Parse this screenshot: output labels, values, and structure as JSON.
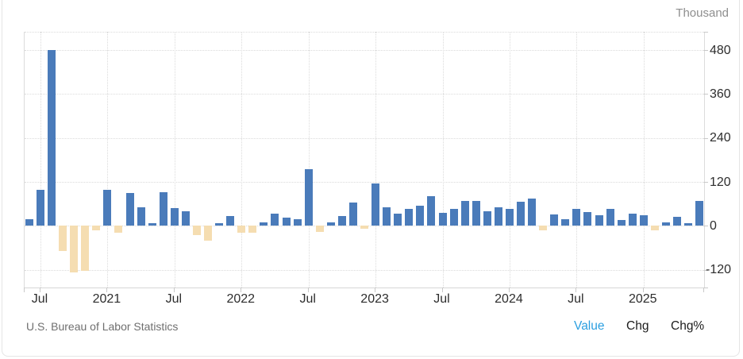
{
  "unit_label": "Thousand",
  "source_label": "U.S. Bureau of Labor Statistics",
  "legend": {
    "items": [
      {
        "label": "Value",
        "active": true
      },
      {
        "label": "Chg",
        "active": false
      },
      {
        "label": "Chg%",
        "active": false
      }
    ]
  },
  "colors": {
    "positive_bar": "#4a7bba",
    "negative_bar": "#f5ddb1",
    "active_link": "#2b9fe0",
    "axis_text": "#2d2d2d",
    "muted_text": "#8e8e8e"
  },
  "chart_data": {
    "type": "bar",
    "title": "",
    "ylabel_unit": "Thousand",
    "y_ticks": [
      480,
      360,
      240,
      120,
      0,
      -120
    ],
    "ylim": [
      -168,
      530
    ],
    "grid": "dotted",
    "legend_position": "bottom-right",
    "x_ticks": [
      {
        "index": 1,
        "label": "Jul"
      },
      {
        "index": 7,
        "label": "2021"
      },
      {
        "index": 13,
        "label": "Jul"
      },
      {
        "index": 19,
        "label": "2022"
      },
      {
        "index": 25,
        "label": "Jul"
      },
      {
        "index": 31,
        "label": "2023"
      },
      {
        "index": 37,
        "label": "Jul"
      },
      {
        "index": 43,
        "label": "2024"
      },
      {
        "index": 49,
        "label": "Jul"
      },
      {
        "index": 55,
        "label": "2025"
      }
    ],
    "values": [
      18,
      98,
      480,
      -69,
      -127,
      -122,
      -11,
      98,
      -18,
      89,
      51,
      7,
      92,
      49,
      41,
      -25,
      -41,
      8,
      27,
      -18,
      -18,
      9,
      34,
      23,
      18,
      155,
      -17,
      9,
      27,
      63,
      -7,
      116,
      52,
      33,
      47,
      56,
      82,
      35,
      46,
      68,
      68,
      40,
      52,
      46,
      67,
      75,
      -12,
      31,
      18,
      47,
      39,
      29,
      46,
      17,
      34,
      29,
      -11,
      9,
      24,
      7,
      69
    ]
  }
}
